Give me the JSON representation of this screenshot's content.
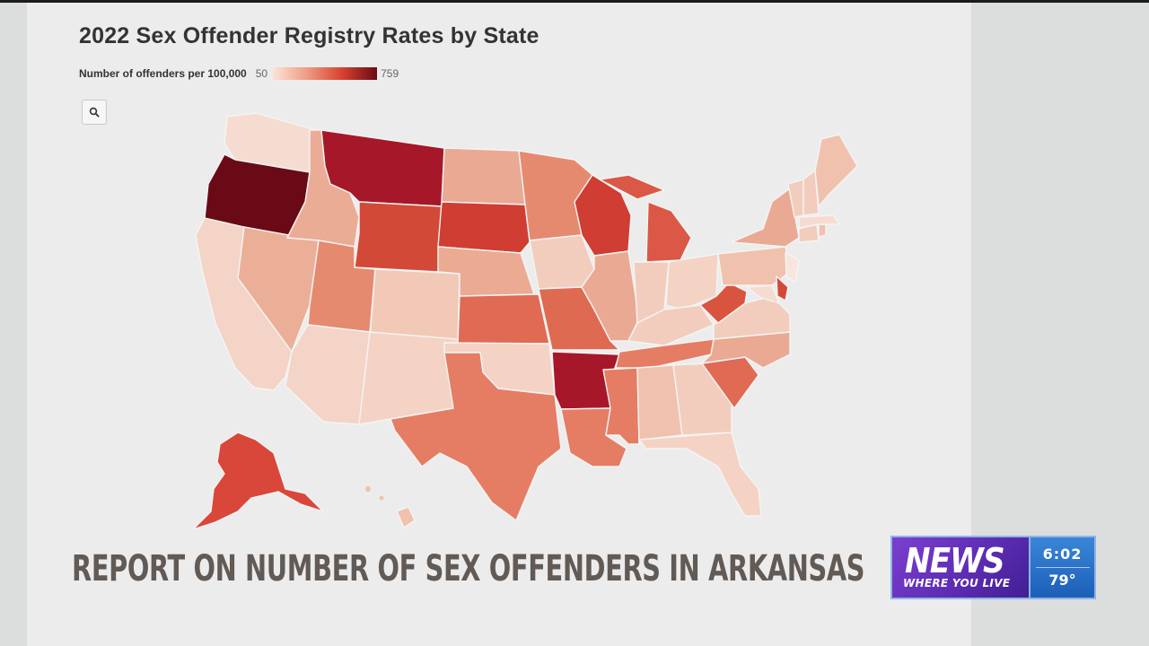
{
  "chart": {
    "title": "2022 Sex Offender Registry Rates by State",
    "legend": {
      "label": "Number of offenders per 100,000",
      "min": "50",
      "max": "759"
    },
    "colors": {
      "scale_low": "#fbe3d8",
      "scale_high": "#6a0a17"
    }
  },
  "chart_data": {
    "type": "choropleth",
    "metric": "Number of offenders per 100,000",
    "scale": [
      50,
      759
    ],
    "approx_values": {
      "OR": 759,
      "MT": 560,
      "AR": 560,
      "WY": 460,
      "SD": 450,
      "WI": 440,
      "MI": 440,
      "AK": 430,
      "KS": 390,
      "MO": 370,
      "SC": 370,
      "WV": 380,
      "TX": 350,
      "LA": 330,
      "MS": 330,
      "TN": 330,
      "NC": 300,
      "DE": 430,
      "MN": 300,
      "UT": 280,
      "ID": 250,
      "NV": 250,
      "NE": 260,
      "IL": 250,
      "ND": 220,
      "NY": 220,
      "AL": 210,
      "KY": 180,
      "IN": 180,
      "OK": 170,
      "FL": 170,
      "GA": 170,
      "PA": 180,
      "VA": 170,
      "ME": 200,
      "CO": 150,
      "NM": 140,
      "AZ": 130,
      "CA": 130,
      "WA": 100,
      "IA": 140,
      "OH": 120,
      "HI": 200,
      "VT": 150,
      "NH": 150,
      "NJ": 60,
      "MA": 80,
      "CT": 100,
      "RI": 110,
      "MD": 100
    }
  },
  "search": {
    "icon": "search-icon"
  },
  "broadcast": {
    "lower_third": "REPORT ON NUMBER OF SEX OFFENDERS IN ARKANSAS",
    "logo_word": "NEWS",
    "logo_tagline": "WHERE YOU LIVE",
    "time": "6:02",
    "temperature": "79°"
  }
}
